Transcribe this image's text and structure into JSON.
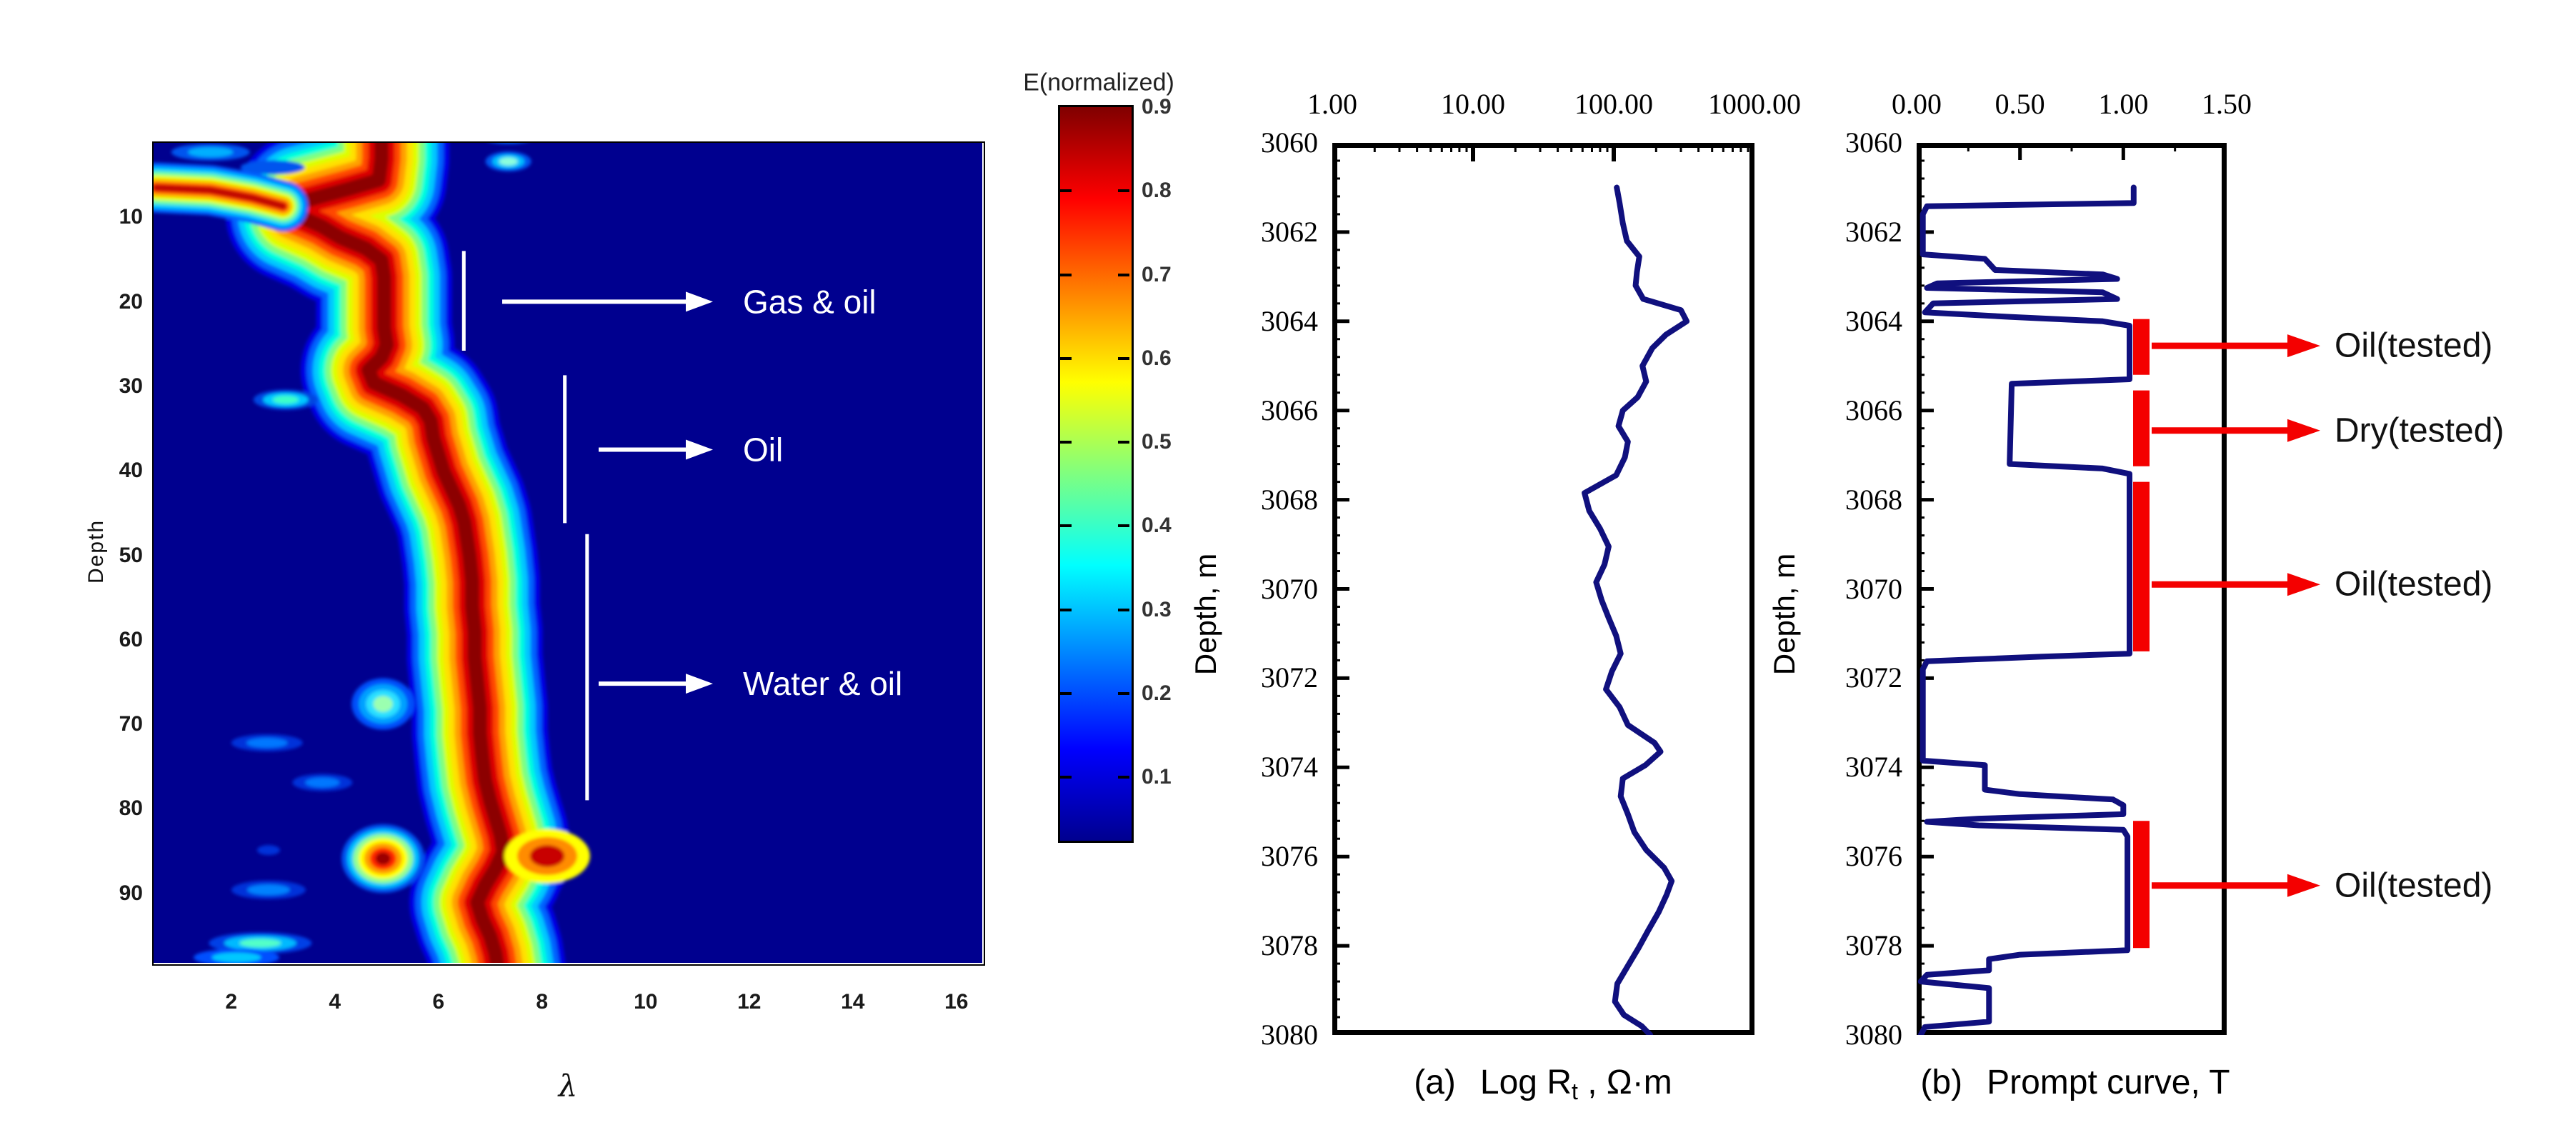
{
  "colors": {
    "background": "#FFFFFF",
    "heatmap_background": "#00008F",
    "curve_navy": "#10107E",
    "annotation_white": "#FFFFFF",
    "tested_red": "#F40000",
    "axis_black": "#000000",
    "jet_band_palette": [
      "#0000E6",
      "#0064FF",
      "#00C8FF",
      "#00FFDC",
      "#7DFF82",
      "#DCFF00",
      "#FFE100",
      "#FFA000",
      "#FF4600",
      "#DC0000",
      "#8C0000"
    ],
    "streak_palette": [
      "#0064FF",
      "#00C8FF",
      "#6EFFA5",
      "#E6FF00",
      "#FFB400",
      "#FF4600",
      "#C00000"
    ]
  },
  "chart_data": [
    {
      "id": "lambda_heatmap",
      "type": "heatmap",
      "xlabel": "λ",
      "ylabel": "Depth",
      "xticks": [
        2,
        4,
        6,
        8,
        10,
        12,
        14,
        16
      ],
      "yticks": [
        10,
        20,
        30,
        40,
        50,
        60,
        70,
        80,
        90
      ],
      "xlim": [
        0.5,
        16.5
      ],
      "ylim": [
        1,
        98
      ],
      "colormap": "jet",
      "annotations": [
        {
          "label": "Gas & oil",
          "line_lambda": 6.49,
          "line_depth": [
            13.9,
            25.7
          ],
          "arrow_depth": 19.9
        },
        {
          "label": "Oil",
          "line_lambda": 8.44,
          "line_depth": [
            28.6,
            46.1
          ],
          "arrow_depth": 37.4
        },
        {
          "label": "Water & oil",
          "line_lambda": 8.87,
          "line_depth": [
            47.4,
            78.9
          ],
          "arrow_depth": 65.1
        }
      ],
      "ridge_lambda_depth": [
        [
          4.9,
          -1.5
        ],
        [
          4.9,
          3
        ],
        [
          4.85,
          5.5
        ],
        [
          4.3,
          6.5
        ],
        [
          3.4,
          8
        ],
        [
          3.2,
          9.5
        ],
        [
          3.75,
          11
        ],
        [
          4.1,
          12.3
        ],
        [
          4.6,
          13.6
        ],
        [
          4.9,
          15
        ],
        [
          4.95,
          17
        ],
        [
          4.95,
          19
        ],
        [
          4.95,
          21
        ],
        [
          4.95,
          23
        ],
        [
          5.0,
          25
        ],
        [
          4.9,
          26.5
        ],
        [
          4.65,
          28
        ],
        [
          4.75,
          29.5
        ],
        [
          5.3,
          31
        ],
        [
          5.7,
          32.5
        ],
        [
          5.85,
          34
        ],
        [
          5.9,
          36
        ],
        [
          6.0,
          38
        ],
        [
          6.1,
          40
        ],
        [
          6.25,
          42
        ],
        [
          6.4,
          44
        ],
        [
          6.5,
          46
        ],
        [
          6.55,
          48
        ],
        [
          6.6,
          50
        ],
        [
          6.65,
          53
        ],
        [
          6.65,
          56
        ],
        [
          6.7,
          59
        ],
        [
          6.7,
          62
        ],
        [
          6.75,
          65
        ],
        [
          6.8,
          68
        ],
        [
          6.8,
          71
        ],
        [
          6.85,
          74
        ],
        [
          6.9,
          76.5
        ],
        [
          7.0,
          79
        ],
        [
          7.1,
          81
        ],
        [
          7.2,
          83
        ],
        [
          7.25,
          85
        ],
        [
          7.1,
          87
        ],
        [
          6.9,
          89
        ],
        [
          6.75,
          91
        ],
        [
          6.85,
          93
        ],
        [
          7.0,
          95
        ],
        [
          7.1,
          97
        ],
        [
          7.15,
          99
        ]
      ],
      "streak_lambda_depth": [
        [
          0.55,
          6.4
        ],
        [
          1.6,
          6.7
        ],
        [
          2.4,
          7.6
        ],
        [
          3.0,
          8.6
        ]
      ],
      "blobs": [
        {
          "lambda": 1.6,
          "depth": 2.2,
          "rx": 55,
          "ry": 12,
          "rings": [
            "#0055EE",
            "#00AFFF"
          ]
        },
        {
          "lambda": 2.8,
          "depth": 4.0,
          "rx": 45,
          "ry": 10,
          "rings": [
            "#0055EE"
          ]
        },
        {
          "lambda": 7.35,
          "depth": 0.3,
          "rx": 38,
          "ry": 11,
          "rings": [
            "#0055EE",
            "#00BFFF"
          ]
        },
        {
          "lambda": 7.35,
          "depth": 3.3,
          "rx": 32,
          "ry": 14,
          "rings": [
            "#0055EE",
            "#00BFFF",
            "#8CFFDC"
          ]
        },
        {
          "lambda": 3.05,
          "depth": 31.5,
          "rx": 45,
          "ry": 14,
          "rings": [
            "#0046E1",
            "#00C8FF",
            "#3CFFC8"
          ]
        },
        {
          "lambda": 4.93,
          "depth": 67.5,
          "rx": 44,
          "ry": 36,
          "rings": [
            "#0050FA",
            "#00A0FF",
            "#2BE0FF",
            "#9BFFB0"
          ]
        },
        {
          "lambda": 2.69,
          "depth": 72.1,
          "rx": 50,
          "ry": 12,
          "rings": [
            "#0031D9",
            "#0077FF"
          ]
        },
        {
          "lambda": 3.76,
          "depth": 76.8,
          "rx": 42,
          "ry": 12,
          "rings": [
            "#0031D9",
            "#0077FF"
          ]
        },
        {
          "lambda": 8.1,
          "depth": 85.5,
          "rx": 60,
          "ry": 38,
          "rings": [
            "#FFFF00",
            "#FF8C00",
            "#C80000"
          ]
        },
        {
          "lambda": 4.93,
          "depth": 85.8,
          "rx": 58,
          "ry": 48,
          "rings": [
            "#0055F0",
            "#00C3FF",
            "#93FF93",
            "#FFFF00",
            "#FFA000",
            "#FF2800",
            "#9B0000"
          ]
        },
        {
          "lambda": 2.72,
          "depth": 84.8,
          "rx": 16,
          "ry": 7,
          "rings": [
            "#0031D9"
          ]
        },
        {
          "lambda": 2.72,
          "depth": 89.5,
          "rx": 52,
          "ry": 13,
          "rings": [
            "#0031D9",
            "#0082FF"
          ]
        },
        {
          "lambda": 2.56,
          "depth": 95.8,
          "rx": 72,
          "ry": 15,
          "rings": [
            "#0040E6",
            "#00B9FF",
            "#52FFC8"
          ]
        },
        {
          "lambda": 2.1,
          "depth": 97.5,
          "rx": 60,
          "ry": 12,
          "rings": [
            "#0050FF",
            "#00C8FF"
          ]
        }
      ]
    },
    {
      "id": "colorbar",
      "type": "colorbar",
      "title": "E(normalized)",
      "ticks": [
        0.9,
        0.8,
        0.7,
        0.6,
        0.5,
        0.4,
        0.3,
        0.2,
        0.1
      ],
      "range_top": 0.9,
      "range_bottom": 0.02,
      "colormap": "jet"
    },
    {
      "id": "rt_log",
      "type": "line",
      "title_parts": {
        "p1": "(a)",
        "p2": "Log R",
        "sub": "t",
        "p3": " , Ω·m"
      },
      "x_scale": "log",
      "xlim": [
        1,
        1000
      ],
      "xticks": [
        "1.00",
        "10.00",
        "100.00",
        "1000.00"
      ],
      "ylabel": "Depth, m",
      "yticks": [
        3060,
        3062,
        3064,
        3066,
        3068,
        3070,
        3072,
        3074,
        3076,
        3078,
        3080
      ],
      "ylim": [
        3060,
        3080
      ],
      "series": [
        {
          "name": "Rt",
          "points_depth_value": [
            [
              3061.0,
              105
            ],
            [
              3061.35,
              110
            ],
            [
              3061.8,
              116
            ],
            [
              3062.2,
              124
            ],
            [
              3062.55,
              152
            ],
            [
              3062.9,
              146
            ],
            [
              3063.2,
              143
            ],
            [
              3063.5,
              162
            ],
            [
              3063.75,
              300
            ],
            [
              3064.0,
              330
            ],
            [
              3064.3,
              235
            ],
            [
              3064.6,
              188
            ],
            [
              3065.0,
              160
            ],
            [
              3065.35,
              170
            ],
            [
              3065.7,
              148
            ],
            [
              3066.0,
              116
            ],
            [
              3066.35,
              108
            ],
            [
              3066.7,
              126
            ],
            [
              3067.05,
              120
            ],
            [
              3067.45,
              104
            ],
            [
              3067.85,
              62
            ],
            [
              3068.25,
              67
            ],
            [
              3068.65,
              80
            ],
            [
              3069.05,
              92
            ],
            [
              3069.45,
              86
            ],
            [
              3069.85,
              75
            ],
            [
              3070.25,
              82
            ],
            [
              3070.65,
              92
            ],
            [
              3071.05,
              104
            ],
            [
              3071.45,
              112
            ],
            [
              3071.85,
              97
            ],
            [
              3072.25,
              88
            ],
            [
              3072.65,
              110
            ],
            [
              3073.05,
              126
            ],
            [
              3073.45,
              195
            ],
            [
              3073.65,
              215
            ],
            [
              3073.95,
              168
            ],
            [
              3074.25,
              116
            ],
            [
              3074.65,
              112
            ],
            [
              3075.05,
              126
            ],
            [
              3075.45,
              140
            ],
            [
              3075.85,
              170
            ],
            [
              3076.25,
              228
            ],
            [
              3076.55,
              258
            ],
            [
              3076.85,
              238
            ],
            [
              3077.25,
              208
            ],
            [
              3077.65,
              176
            ],
            [
              3078.05,
              150
            ],
            [
              3078.45,
              126
            ],
            [
              3078.85,
              106
            ],
            [
              3079.25,
              102
            ],
            [
              3079.55,
              118
            ],
            [
              3079.8,
              158
            ],
            [
              3080.0,
              182
            ]
          ]
        }
      ]
    },
    {
      "id": "prompt_curve",
      "type": "line",
      "title_parts": {
        "p1": "(b)",
        "p2": "Prompt curve, T"
      },
      "xlim": [
        0,
        1.5
      ],
      "xticks": [
        "0.00",
        "0.50",
        "1.00",
        "1.50"
      ],
      "ylabel": "Depth, m",
      "yticks": [
        3060,
        3062,
        3064,
        3066,
        3068,
        3070,
        3072,
        3074,
        3076,
        3078,
        3080
      ],
      "ylim": [
        3060,
        3080
      ],
      "series": [
        {
          "name": "T",
          "points_depth_value": [
            [
              3061.0,
              1.05
            ],
            [
              3061.35,
              1.05
            ],
            [
              3061.42,
              0.05
            ],
            [
              3061.6,
              0.03
            ],
            [
              3062.5,
              0.03
            ],
            [
              3062.6,
              0.33
            ],
            [
              3062.85,
              0.38
            ],
            [
              3062.95,
              0.9
            ],
            [
              3063.05,
              0.97
            ],
            [
              3063.15,
              0.1
            ],
            [
              3063.25,
              0.05
            ],
            [
              3063.35,
              0.9
            ],
            [
              3063.5,
              0.97
            ],
            [
              3063.6,
              0.08
            ],
            [
              3063.8,
              0.04
            ],
            [
              3063.9,
              0.45
            ],
            [
              3064.0,
              0.9
            ],
            [
              3064.1,
              1.03
            ],
            [
              3065.3,
              1.03
            ],
            [
              3065.4,
              0.46
            ],
            [
              3067.2,
              0.45
            ],
            [
              3067.3,
              0.9
            ],
            [
              3067.42,
              1.03
            ],
            [
              3071.45,
              1.03
            ],
            [
              3071.52,
              0.6
            ],
            [
              3071.62,
              0.05
            ],
            [
              3071.8,
              0.03
            ],
            [
              3073.85,
              0.03
            ],
            [
              3073.95,
              0.33
            ],
            [
              3074.5,
              0.33
            ],
            [
              3074.6,
              0.5
            ],
            [
              3074.72,
              0.95
            ],
            [
              3074.85,
              1.0
            ],
            [
              3075.05,
              1.0
            ],
            [
              3075.15,
              0.3
            ],
            [
              3075.22,
              0.05
            ],
            [
              3075.3,
              0.3
            ],
            [
              3075.4,
              1.0
            ],
            [
              3075.55,
              1.02
            ],
            [
              3078.1,
              1.02
            ],
            [
              3078.2,
              0.5
            ],
            [
              3078.3,
              0.35
            ],
            [
              3078.55,
              0.35
            ],
            [
              3078.65,
              0.05
            ],
            [
              3078.8,
              0.02
            ],
            [
              3078.95,
              0.35
            ],
            [
              3079.7,
              0.35
            ],
            [
              3079.82,
              0.04
            ],
            [
              3080.0,
              0.02
            ]
          ]
        }
      ],
      "tested_intervals": [
        {
          "label": "Oil(tested)",
          "depth": [
            3063.95,
            3065.2
          ],
          "arrow_depth": 3064.55
        },
        {
          "label": "Dry(tested)",
          "depth": [
            3065.55,
            3067.25
          ],
          "arrow_depth": 3066.45
        },
        {
          "label": "Oil(tested)",
          "depth": [
            3067.6,
            3071.4
          ],
          "arrow_depth": 3069.9
        },
        {
          "label": "Oil(tested)",
          "depth": [
            3075.2,
            3078.05
          ],
          "arrow_depth": 3076.65
        }
      ]
    }
  ]
}
